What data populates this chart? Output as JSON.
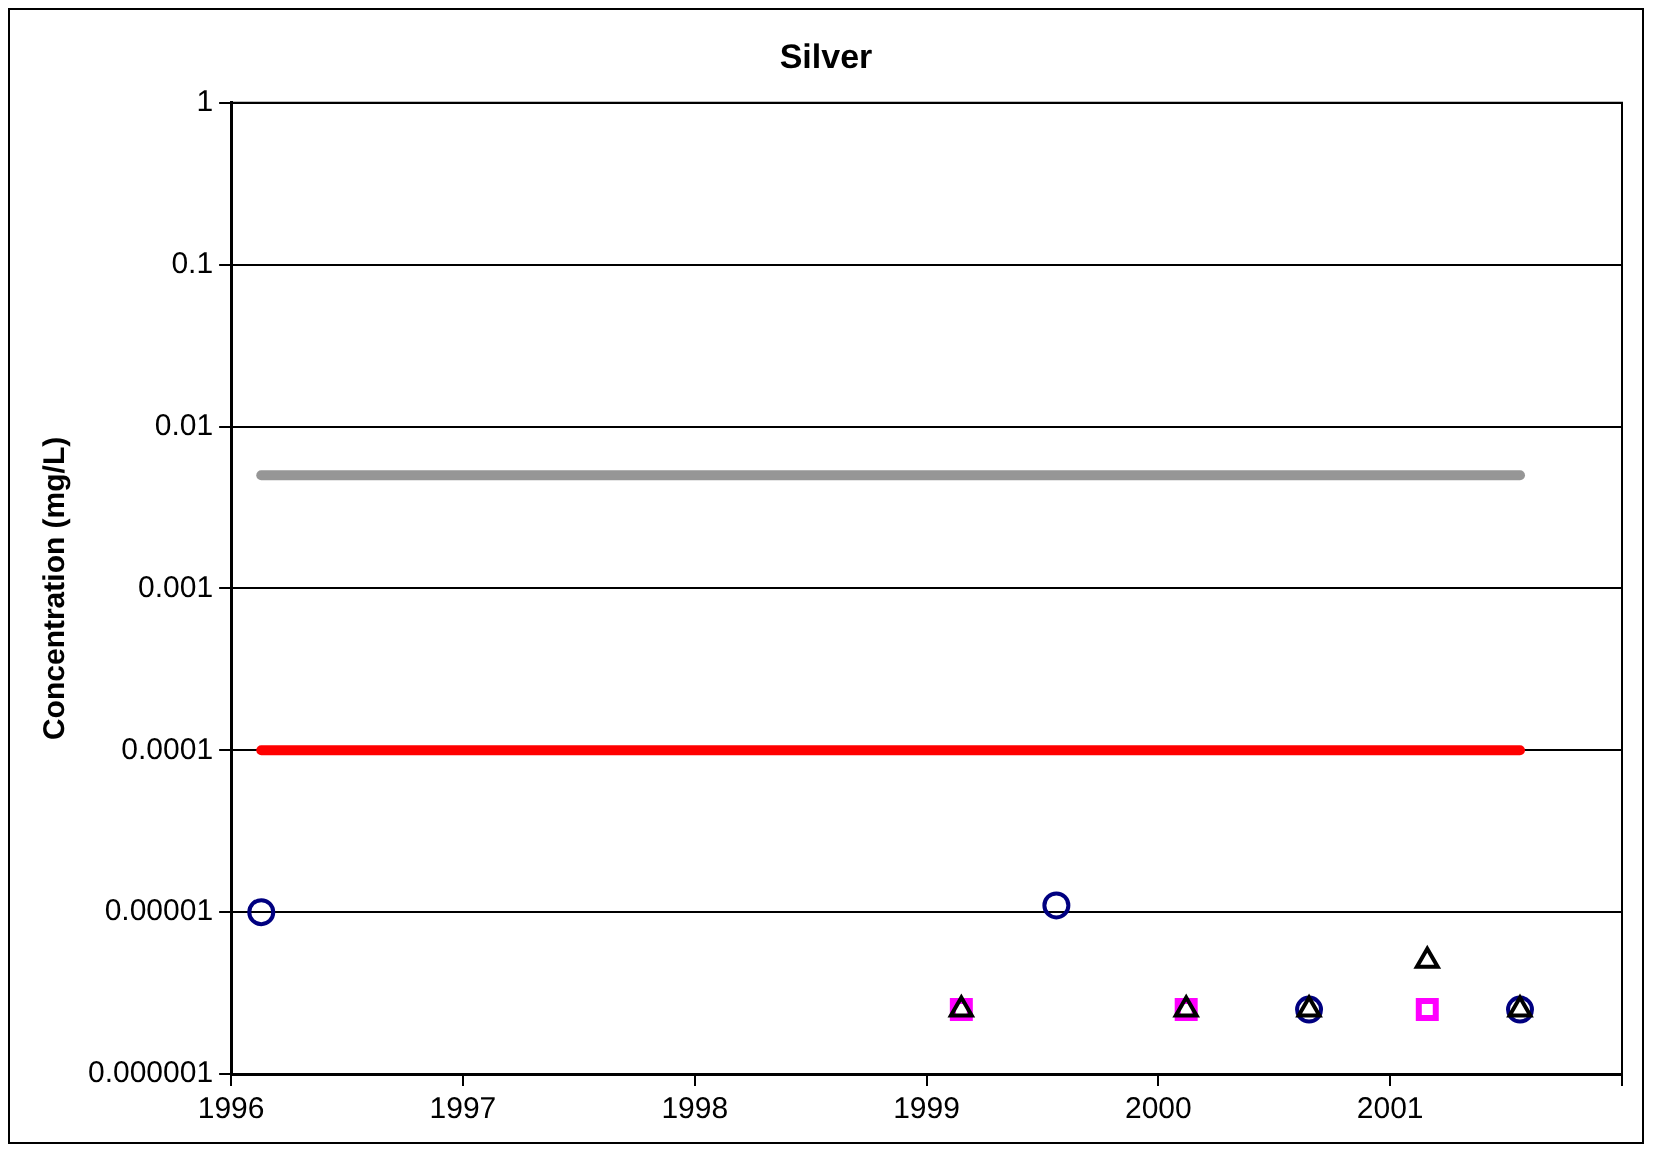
{
  "chart_data": {
    "type": "scatter",
    "title": "Silver",
    "ylabel": "Concentration (mg/L)",
    "log": "y",
    "ylim": [
      1e-06,
      1
    ],
    "yticks": [
      {
        "value": 1e-06,
        "label": "0.000001"
      },
      {
        "value": 1e-05,
        "label": "0.00001"
      },
      0.0001,
      0.001,
      0.01,
      0.1,
      1
    ],
    "xlim": [
      1996,
      2002
    ],
    "xticks": [
      1996,
      1997,
      1998,
      1999,
      2000,
      2001,
      {
        "value": 2002,
        "label": null
      }
    ],
    "grid": "y",
    "legend": false,
    "series": [
      {
        "type": "line",
        "color": "#969696",
        "marker": "none",
        "x": [
          1996.13,
          2001.56
        ],
        "values": [
          0.005,
          0.005
        ]
      },
      {
        "type": "line",
        "color": "#ff0000",
        "marker": "none",
        "x": [
          1996.13,
          2001.56
        ],
        "values": [
          0.0001,
          0.0001
        ]
      },
      {
        "type": "scatter",
        "color": "#ff00ff",
        "marker": "square",
        "x": [
          1999.15,
          2000.12,
          2001.16
        ],
        "values": [
          2.5e-06,
          2.5e-06,
          2.5e-06
        ]
      },
      {
        "type": "scatter",
        "color": "#000080",
        "marker": "circle",
        "x": [
          1996.13,
          1999.56,
          2000.65,
          2001.56
        ],
        "values": [
          1e-05,
          1.1e-05,
          2.5e-06,
          2.5e-06
        ]
      },
      {
        "type": "scatter",
        "color": "#000000",
        "marker": "triangle",
        "x": [
          1999.15,
          2000.12,
          2000.65,
          2001.16,
          2001.56
        ],
        "values": [
          2.5e-06,
          2.5e-06,
          2.5e-06,
          5e-06,
          2.5e-06
        ]
      }
    ]
  }
}
